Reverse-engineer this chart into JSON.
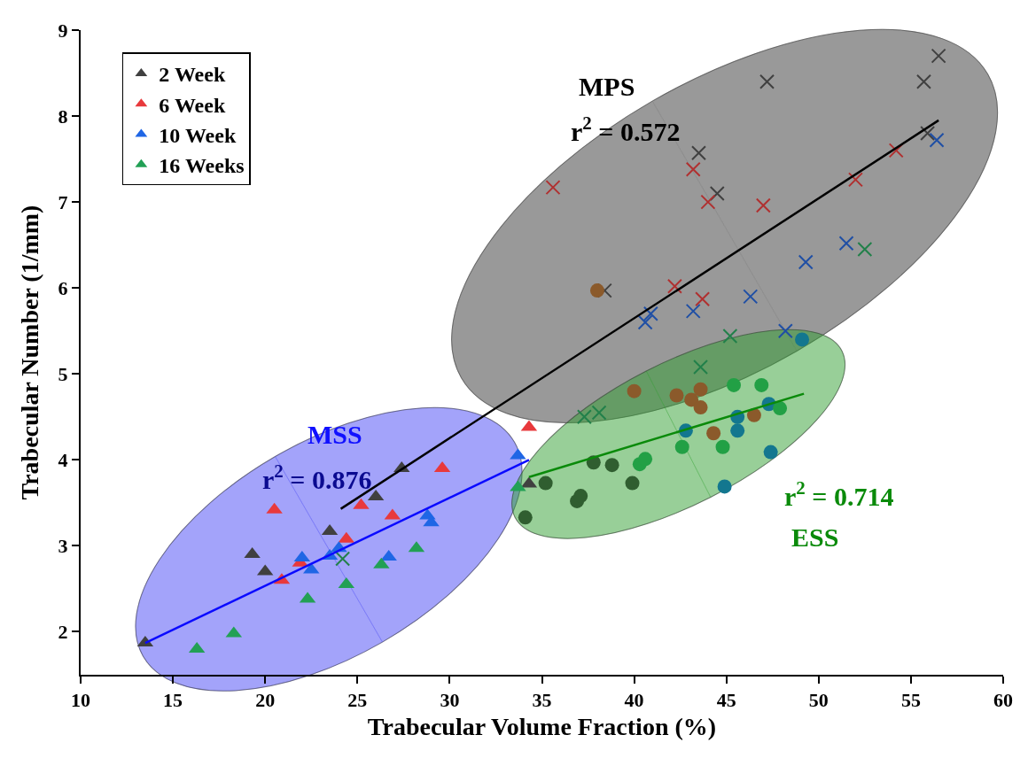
{
  "chart_data": {
    "type": "scatter",
    "xlabel": "Trabecular Volume Fraction (%)",
    "ylabel": "Trabecular Number (1/mm)",
    "xlim": [
      10,
      60
    ],
    "xticks": [
      10,
      15,
      20,
      25,
      30,
      35,
      40,
      45,
      50,
      55,
      60
    ],
    "ylim": [
      1.5,
      9
    ],
    "yticks": [
      2,
      3,
      4,
      5,
      6,
      7,
      8,
      9
    ],
    "grid": false,
    "legend": "top left",
    "annotations": [
      "MPS",
      "r$^{2}$ = 0.572",
      "MSS",
      "r$^{2}$ = 0.876",
      "r$^{2}$ = 0.714",
      "ESS"
    ],
    "series": [
      {
        "name": "2 Week",
        "color": "#404040",
        "marker": "triangle",
        "x": [
          13.5,
          19.3,
          20.0,
          23.5,
          26.0,
          27.4,
          34.3
        ],
        "values": [
          1.87,
          2.9,
          2.7,
          3.17,
          3.57,
          3.9,
          3.72
        ]
      },
      {
        "name": "6 Week",
        "color": "#e8393c",
        "marker": "triangle",
        "x": [
          20.5,
          21.9,
          20.9,
          24.4,
          25.2,
          26.9,
          29.6,
          34.3
        ],
        "values": [
          3.42,
          2.8,
          2.6,
          3.08,
          3.47,
          3.35,
          3.9,
          4.38
        ]
      },
      {
        "name": "10 Week",
        "color": "#1f66e5",
        "marker": "triangle",
        "x": [
          22.0,
          22.5,
          23.5,
          24.0,
          26.7,
          28.8,
          29.0,
          33.7
        ],
        "values": [
          2.86,
          2.72,
          2.88,
          2.97,
          2.87,
          3.35,
          3.27,
          4.05
        ]
      },
      {
        "name": "16 Weeks",
        "color": "#22a055",
        "marker": "triangle",
        "x": [
          16.3,
          18.3,
          22.3,
          24.4,
          26.3,
          28.2,
          33.7
        ],
        "values": [
          1.8,
          1.98,
          2.38,
          2.55,
          2.78,
          2.97,
          3.68
        ]
      },
      {
        "color": "#404040",
        "marker": "cross",
        "x": [
          38.4,
          43.5,
          44.5,
          47.2,
          55.7,
          56.5,
          55.9
        ],
        "values": [
          5.97,
          7.57,
          7.1,
          8.4,
          8.4,
          8.7,
          7.8
        ]
      },
      {
        "color": "#b03030",
        "marker": "cross",
        "x": [
          35.6,
          43.2,
          44.0,
          43.7,
          42.2,
          47.0,
          52.0,
          54.2
        ],
        "values": [
          7.17,
          7.38,
          7.0,
          5.87,
          6.02,
          6.96,
          7.26,
          7.6
        ]
      },
      {
        "color": "#1f4fa5",
        "marker": "cross",
        "x": [
          40.6,
          40.9,
          43.2,
          46.3,
          48.2,
          49.3,
          51.5,
          56.4
        ],
        "values": [
          5.6,
          5.7,
          5.73,
          5.9,
          5.5,
          6.3,
          6.52,
          7.72
        ]
      },
      {
        "color": "#22804a",
        "marker": "cross",
        "x": [
          24.2,
          37.3,
          38.1,
          43.6,
          45.2,
          52.5
        ],
        "values": [
          2.85,
          4.5,
          4.55,
          5.08,
          5.44,
          6.45
        ]
      },
      {
        "color": "#305e30",
        "marker": "circle",
        "x": [
          34.1,
          35.2,
          36.9,
          37.1,
          37.8,
          38.8,
          39.9
        ],
        "values": [
          3.33,
          3.73,
          3.52,
          3.58,
          3.97,
          3.94,
          3.73
        ]
      },
      {
        "color": "#8b5a2b",
        "marker": "circle",
        "x": [
          38.0,
          40.0,
          42.3,
          43.1,
          43.6,
          43.6,
          44.3,
          46.5
        ],
        "values": [
          5.97,
          4.8,
          4.75,
          4.7,
          4.82,
          4.61,
          4.31,
          4.52
        ]
      },
      {
        "color": "#13778f",
        "marker": "circle",
        "x": [
          42.8,
          45.6,
          45.6,
          44.9,
          47.3,
          47.4,
          49.1
        ],
        "values": [
          4.34,
          4.5,
          4.34,
          3.69,
          4.65,
          4.09,
          5.4
        ]
      },
      {
        "color": "#22a045",
        "marker": "circle",
        "x": [
          40.3,
          40.6,
          42.6,
          44.8,
          45.4,
          46.9,
          47.9
        ],
        "values": [
          3.95,
          4.01,
          4.15,
          4.15,
          4.87,
          4.87,
          4.6
        ]
      },
      {
        "type": "line",
        "color": "#000000",
        "marker": "none",
        "x": [
          24.1,
          56.5
        ],
        "values": [
          3.43,
          7.95
        ]
      },
      {
        "type": "line",
        "color": "#0a0aff",
        "marker": "none",
        "x": [
          13.5,
          34.3
        ],
        "values": [
          1.87,
          4.0
        ]
      },
      {
        "type": "line",
        "color": "#0a8a0a",
        "marker": "none",
        "x": [
          34.3,
          49.2
        ],
        "values": [
          3.8,
          4.77
        ]
      }
    ]
  }
}
